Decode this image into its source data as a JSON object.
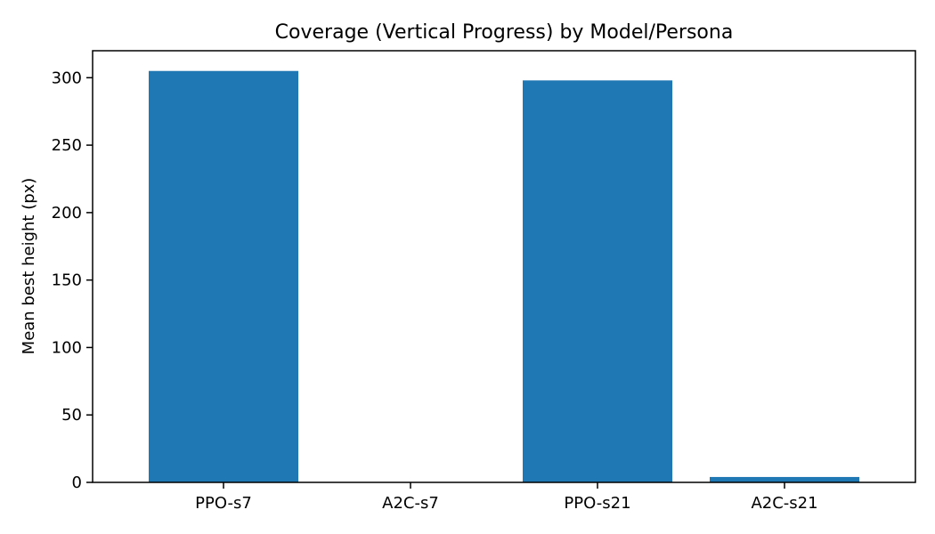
{
  "chart_data": {
    "type": "bar",
    "title": "Coverage (Vertical Progress) by Model/Persona",
    "xlabel": "",
    "ylabel": "Mean best height (px)",
    "categories": [
      "PPO-s7",
      "A2C-s7",
      "PPO-s21",
      "A2C-s21"
    ],
    "values": [
      305,
      0,
      298,
      4
    ],
    "ylim": [
      0,
      320
    ],
    "yticks": [
      0,
      50,
      100,
      150,
      200,
      250,
      300
    ],
    "grid": false,
    "legend": "none",
    "bar_color": "#1f77b4"
  }
}
